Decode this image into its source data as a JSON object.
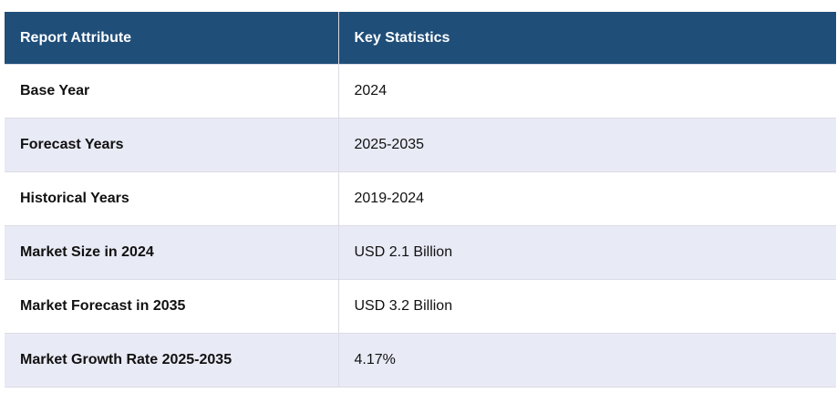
{
  "table": {
    "headers": [
      "Report Attribute",
      "Key Statistics"
    ],
    "rows": [
      {
        "attribute": "Base Year",
        "value": "2024"
      },
      {
        "attribute": "Forecast Years",
        "value": "2025-2035"
      },
      {
        "attribute": "Historical Years",
        "value": "2019-2024"
      },
      {
        "attribute": "Market Size in 2024",
        "value": "USD 2.1 Billion"
      },
      {
        "attribute": "Market Forecast in 2035",
        "value": "USD 3.2 Billion"
      },
      {
        "attribute": "Market Growth Rate 2025-2035",
        "value": "4.17%"
      }
    ]
  },
  "colors": {
    "header_bg": "#1f4e79",
    "header_text": "#ffffff",
    "row_alt_bg": "#e8eaf5"
  }
}
